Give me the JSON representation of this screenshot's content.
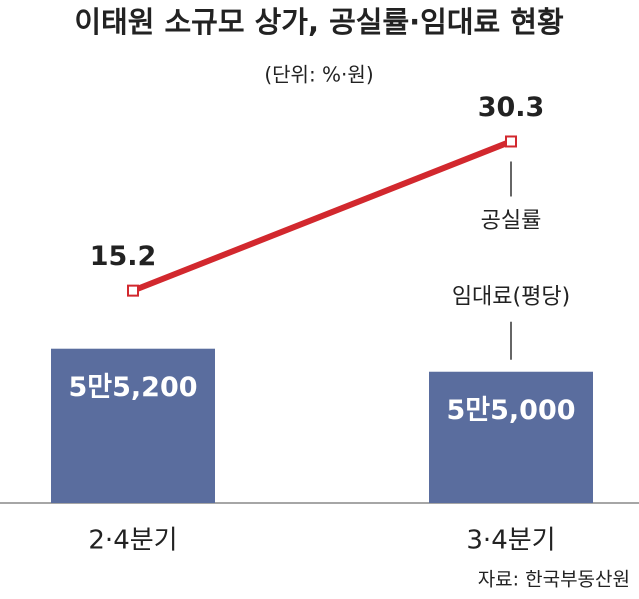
{
  "chart_data": {
    "type": "bar",
    "title": "이태원 소규모 상가, 공실률·임대료 현황",
    "subtitle": "(단위: %·원)",
    "source": "자료: 한국부동산원",
    "categories": [
      "2·4분기",
      "3·4분기"
    ],
    "series": [
      {
        "name": "임대료(평당)",
        "type": "bar",
        "axis": "y",
        "color": "#5a6d9e",
        "values": [
          55200,
          55000
        ],
        "value_labels": [
          "5만5,200",
          "5만5,000"
        ]
      },
      {
        "name": "공실률",
        "type": "line",
        "axis": "y2",
        "color": "#d2282e",
        "values": [
          15.2,
          30.3
        ]
      }
    ],
    "ylim": [
      53860,
      57360
    ],
    "y2lim": [
      -6.3,
      34.5
    ]
  }
}
